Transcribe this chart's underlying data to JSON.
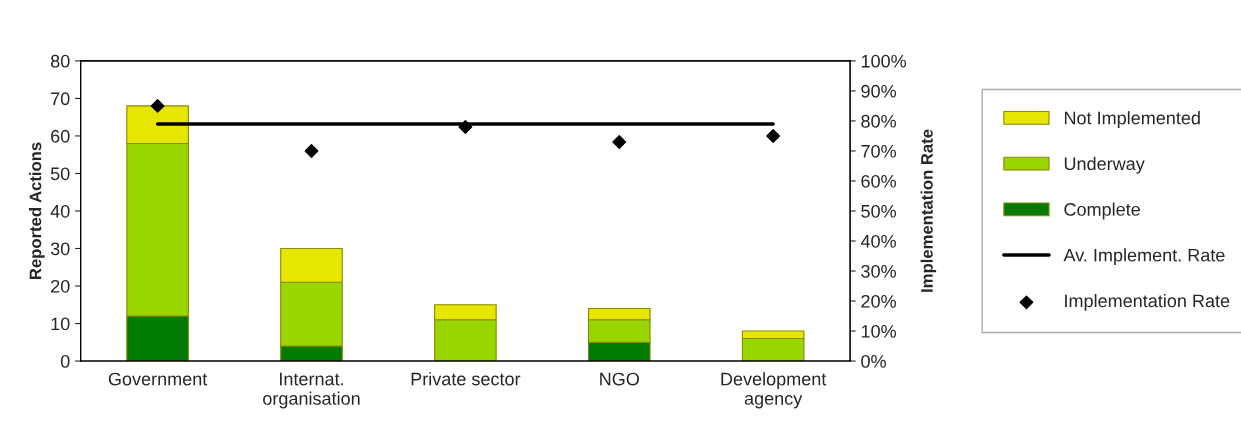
{
  "chart_data": {
    "type": "bar",
    "stacked": true,
    "categories": [
      "Government",
      "Internat.\norganisation",
      "Private sector",
      "NGO",
      "Development\nagency"
    ],
    "ylabel": "Reported Actions",
    "y2label": "Implementation Rate",
    "ylim": [
      0,
      80
    ],
    "yticks": [
      0,
      10,
      20,
      30,
      40,
      50,
      60,
      70,
      80
    ],
    "y2lim": [
      0,
      100
    ],
    "y2ticks": [
      {
        "value": 0,
        "label": "0%"
      },
      {
        "value": 10,
        "label": "10%"
      },
      {
        "value": 20,
        "label": "20%"
      },
      {
        "value": 30,
        "label": "30%"
      },
      {
        "value": 40,
        "label": "40%"
      },
      {
        "value": 50,
        "label": "50%"
      },
      {
        "value": 60,
        "label": "60%"
      },
      {
        "value": 70,
        "label": "70%"
      },
      {
        "value": 80,
        "label": "80%"
      },
      {
        "value": 90,
        "label": "90%"
      },
      {
        "value": 100,
        "label": "100%"
      }
    ],
    "grid": false,
    "legend": "right",
    "series": [
      {
        "name": "Complete",
        "color": "#007a00",
        "values": [
          12,
          4,
          0,
          5,
          0
        ]
      },
      {
        "name": "Underway",
        "color": "#99d600",
        "values": [
          46,
          17,
          11,
          6,
          6
        ]
      },
      {
        "name": "Not Implemented",
        "color": "#e6e600",
        "values": [
          10,
          9,
          4,
          3,
          2
        ]
      },
      {
        "name": "Av. Implement. Rate",
        "type": "line",
        "axis": "y2",
        "color": "#000000",
        "marker": "none",
        "line_style": "solid",
        "values": [
          79,
          79,
          79,
          79,
          79
        ]
      },
      {
        "name": "Implementation Rate",
        "type": "scatter",
        "axis": "y2",
        "color": "#000000",
        "marker": "diamond",
        "values": [
          85,
          70,
          78,
          73,
          75
        ]
      }
    ]
  }
}
